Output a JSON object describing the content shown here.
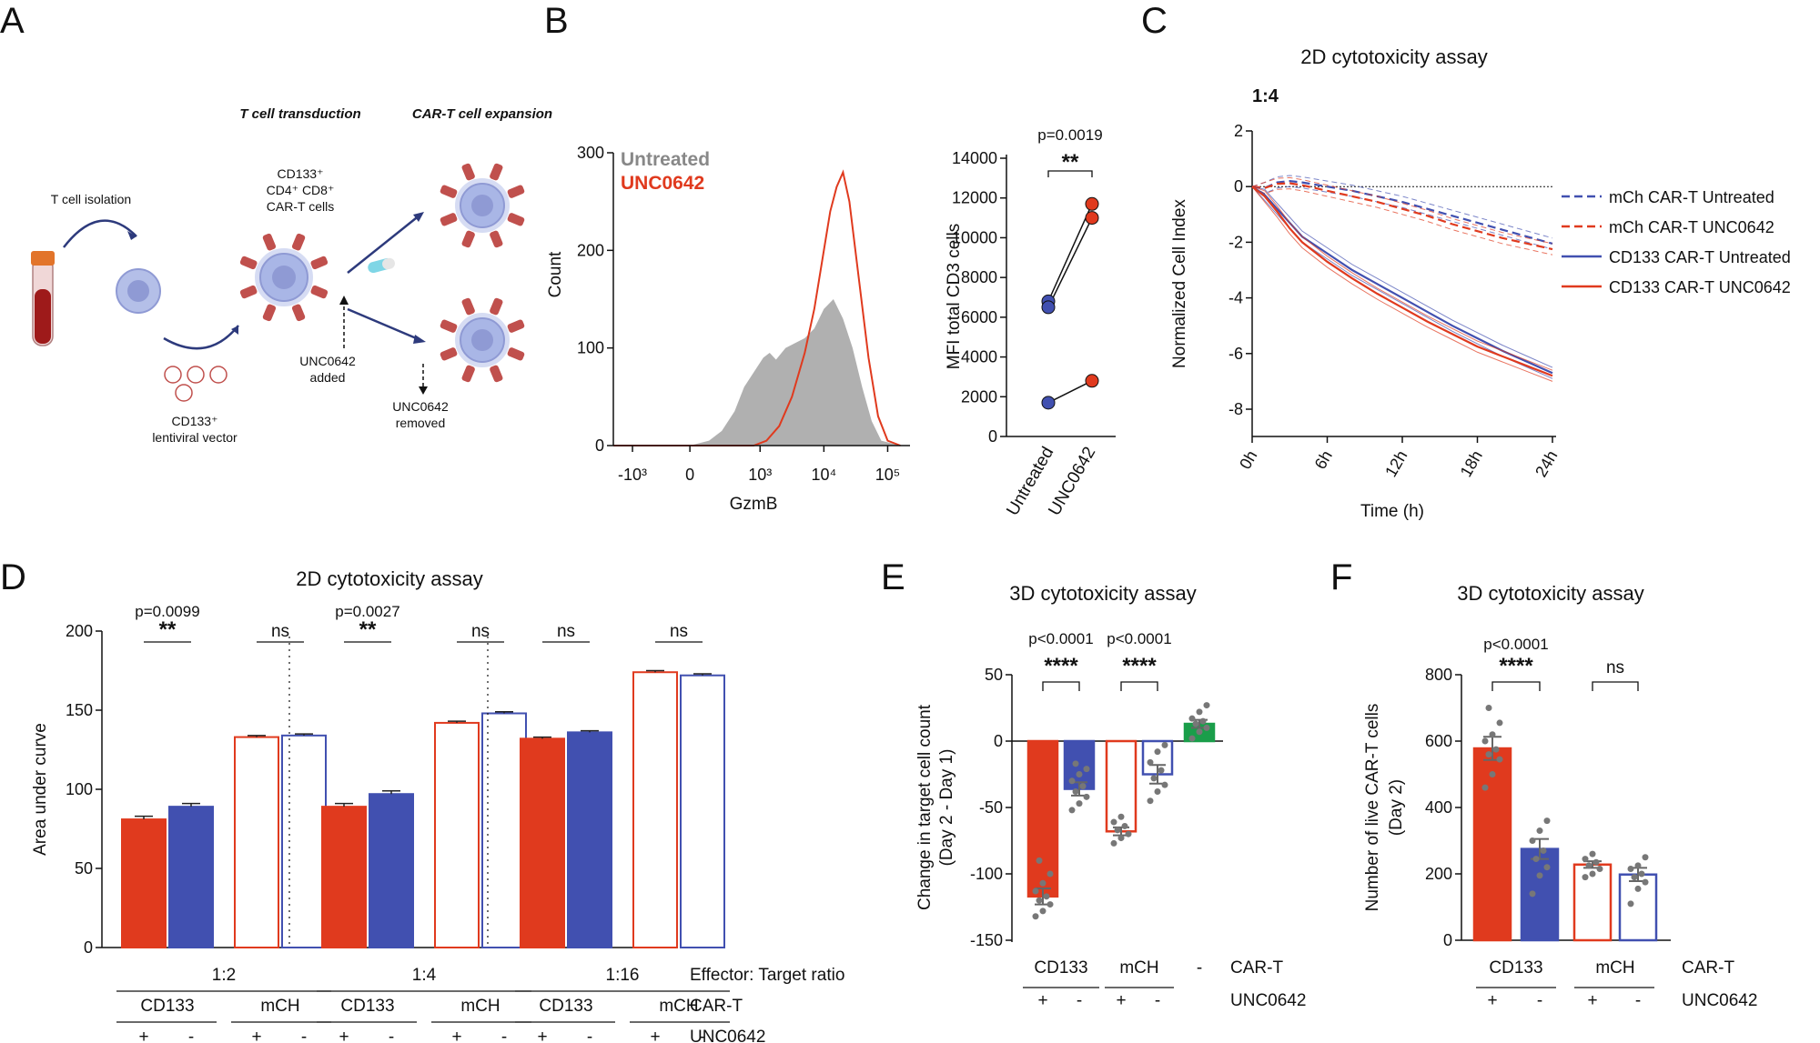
{
  "panels": {
    "A": "A",
    "B": "B",
    "C": "C",
    "D": "D",
    "E": "E",
    "F": "F"
  },
  "schematic": {
    "step_isolation": "T cell isolation",
    "step_transduction": "T cell transduction",
    "step_expansion": "CAR-T cell expansion",
    "cell_markers_line1": "CD133⁺",
    "cell_markers_line2": "CD4⁺ CD8⁺",
    "cell_markers_line3": "CAR-T cells",
    "vector_label_line1": "CD133⁺",
    "vector_label_line2": "lentiviral vector",
    "drug_added_line1": "UNC0642",
    "drug_added_line2": "added",
    "drug_removed_line1": "UNC0642",
    "drug_removed_line2": "removed",
    "colors": {
      "cell": "#a9b6e6",
      "receptor": "#c0504d",
      "arrow": "#2d3a7c",
      "blood": "#9e1a1a"
    }
  },
  "colors": {
    "red": "#e03a1e",
    "blue": "#4150b0",
    "green": "#1a9e4a",
    "gray_fill": "#b0b0b0",
    "point_gray": "#777777"
  },
  "chart_data": [
    {
      "id": "B-histogram",
      "type": "area",
      "xlabel": "GzmB",
      "ylabel": "Count",
      "ylim": [
        0,
        300
      ],
      "yticks": [
        "0",
        "100",
        "200",
        "300"
      ],
      "xticks": [
        "-10³",
        "0",
        "10³",
        "10⁴",
        "10⁵"
      ],
      "legend": [
        "Untreated",
        "UNC0642"
      ],
      "series": [
        {
          "name": "Untreated",
          "x": [
            0.6,
            1.8,
            2.1,
            2.3,
            2.5,
            2.65,
            2.8,
            2.95,
            3.05,
            3.15,
            3.3,
            3.45,
            3.6,
            3.75,
            3.9,
            4.05,
            4.2,
            4.35,
            4.5,
            4.65,
            4.8,
            5.1
          ],
          "values": [
            0,
            0,
            5,
            15,
            35,
            60,
            75,
            90,
            95,
            88,
            100,
            105,
            110,
            120,
            140,
            150,
            130,
            100,
            60,
            25,
            5,
            0
          ]
        },
        {
          "name": "UNC0642",
          "x": [
            0.6,
            2.8,
            3.0,
            3.2,
            3.4,
            3.6,
            3.75,
            3.9,
            4.0,
            4.1,
            4.2,
            4.3,
            4.45,
            4.6,
            4.75,
            4.9,
            5.1
          ],
          "values": [
            0,
            0,
            5,
            20,
            50,
            95,
            140,
            200,
            240,
            265,
            280,
            250,
            170,
            90,
            30,
            5,
            0
          ]
        }
      ]
    },
    {
      "id": "B-paired",
      "type": "scatter",
      "ylabel": "MFI total CD3 cells",
      "ylim": [
        0,
        14000
      ],
      "yticks": [
        "0",
        "2000",
        "4000",
        "6000",
        "8000",
        "10000",
        "12000",
        "14000"
      ],
      "categories": [
        "Untreated",
        "UNC0642"
      ],
      "pairs": [
        [
          6800,
          11700
        ],
        [
          6500,
          11000
        ],
        [
          1700,
          2800
        ]
      ],
      "pvalue": "p=0.0019",
      "sig": "**"
    },
    {
      "id": "C-line",
      "type": "line",
      "title": "2D cytotoxicity assay",
      "subtitle": "1:4",
      "xlabel": "Time (h)",
      "ylabel": "Normalized Cell Index",
      "ylim": [
        -8,
        2
      ],
      "yticks": [
        "2",
        "0",
        "-2",
        "-4",
        "-6",
        "-8"
      ],
      "xticks": [
        "0h",
        "6h",
        "12h",
        "18h",
        "24h"
      ],
      "x": [
        0,
        1,
        2,
        3,
        4,
        6,
        8,
        10,
        12,
        14,
        16,
        18,
        20,
        22,
        24
      ],
      "series": [
        {
          "name": "mCh CAR-T Untreated",
          "style": "dashed",
          "color": "blue",
          "values": [
            0,
            -0.05,
            0.15,
            0.2,
            0.15,
            0.0,
            -0.15,
            -0.35,
            -0.55,
            -0.8,
            -1.05,
            -1.3,
            -1.55,
            -1.8,
            -2.05
          ]
        },
        {
          "name": "mCh CAR-T UNC0642",
          "style": "dashed",
          "color": "red",
          "values": [
            0,
            -0.05,
            0.1,
            0.12,
            0.05,
            -0.15,
            -0.35,
            -0.55,
            -0.8,
            -1.05,
            -1.35,
            -1.6,
            -1.85,
            -2.05,
            -2.25
          ]
        },
        {
          "name": "CD133 CAR-T Untreated",
          "style": "solid",
          "color": "blue",
          "values": [
            0,
            -0.3,
            -0.8,
            -1.3,
            -1.8,
            -2.4,
            -3.0,
            -3.5,
            -4.0,
            -4.5,
            -5.0,
            -5.45,
            -5.9,
            -6.3,
            -6.7
          ]
        },
        {
          "name": "CD133 CAR-T UNC0642",
          "style": "solid",
          "color": "red",
          "values": [
            0,
            -0.35,
            -0.9,
            -1.5,
            -2.0,
            -2.7,
            -3.3,
            -3.85,
            -4.35,
            -4.85,
            -5.3,
            -5.75,
            -6.1,
            -6.45,
            -6.8
          ]
        }
      ]
    },
    {
      "id": "D-bars",
      "type": "bar",
      "title": "2D cytotoxicity assay",
      "ylabel": "Area under curve",
      "ylim": [
        0,
        200
      ],
      "yticks": [
        "0",
        "50",
        "100",
        "150",
        "200"
      ],
      "groups": [
        {
          "ratio": "1:2",
          "bars": [
            81,
            89,
            133,
            134
          ],
          "errors": [
            2,
            2,
            1,
            1
          ],
          "p_left": "p=0.0099",
          "sig_left": "**",
          "sig_right": "ns"
        },
        {
          "ratio": "1:4",
          "bars": [
            89,
            97,
            142,
            148
          ],
          "errors": [
            2,
            2,
            1,
            1
          ],
          "p_left": "p=0.0027",
          "sig_left": "**",
          "sig_right": "ns"
        },
        {
          "ratio": "1:16",
          "bars": [
            132,
            136,
            174,
            172
          ],
          "errors": [
            1,
            1,
            1,
            1
          ],
          "p_left": "",
          "sig_left": "ns",
          "sig_right": "ns"
        }
      ],
      "car_labels": [
        "CD133",
        "mCH"
      ],
      "unc_labels": [
        "+",
        "-",
        "+",
        "-"
      ],
      "row_labels": [
        "Effector: Target ratio",
        "CAR-T",
        "UNC0642"
      ]
    },
    {
      "id": "E-bars",
      "type": "bar",
      "title": "3D cytotoxicity assay",
      "ylabel_line1": "Change in target cell count",
      "ylabel_line2": "(Day 2 - Day 1)",
      "ylim": [
        -150,
        50
      ],
      "yticks": [
        "50",
        "0",
        "-50",
        "-100",
        "-150"
      ],
      "bars": [
        -117,
        -36,
        -68,
        -25,
        13
      ],
      "errors": [
        6,
        5,
        3,
        7,
        3
      ],
      "points": [
        [
          -132,
          -128,
          -123,
          -120,
          -117,
          -113,
          -107,
          -100,
          -90
        ],
        [
          -52,
          -47,
          -42,
          -38,
          -34,
          -30,
          -25,
          -21,
          -17
        ],
        [
          -77,
          -73,
          -70,
          -67,
          -64,
          -61,
          -57
        ],
        [
          -45,
          -38,
          -33,
          -28,
          -22,
          -16,
          -8,
          -3
        ],
        [
          2,
          7,
          10,
          13,
          15,
          17,
          22,
          27
        ]
      ],
      "sig": [
        {
          "p": "p<0.0001",
          "stars": "****"
        },
        {
          "p": "p<0.0001",
          "stars": "****"
        }
      ],
      "car_labels": [
        "CD133",
        "mCH",
        "-"
      ],
      "unc_labels": [
        "+",
        "-",
        "+",
        "-"
      ],
      "row_labels": [
        "CAR-T",
        "UNC0642"
      ]
    },
    {
      "id": "F-bars",
      "type": "bar",
      "title": "3D cytotoxicity assay",
      "ylabel_line1": "Number of live CAR-T cells",
      "ylabel_line2": "(Day 2)",
      "ylim": [
        0,
        800
      ],
      "yticks": [
        "0",
        "200",
        "400",
        "600",
        "800"
      ],
      "bars": [
        578,
        275,
        228,
        198
      ],
      "errors": [
        35,
        30,
        10,
        20
      ],
      "points": [
        [
          460,
          500,
          545,
          560,
          575,
          600,
          620,
          655,
          700
        ],
        [
          140,
          195,
          220,
          245,
          270,
          300,
          330,
          360
        ],
        [
          190,
          200,
          215,
          225,
          235,
          245,
          260
        ],
        [
          110,
          155,
          175,
          190,
          200,
          215,
          225,
          250
        ]
      ],
      "sig": [
        {
          "p": "p<0.0001",
          "stars": "****"
        },
        {
          "p": "",
          "stars": "ns"
        }
      ],
      "car_labels": [
        "CD133",
        "mCH"
      ],
      "unc_labels": [
        "+",
        "-",
        "+",
        "-"
      ],
      "row_labels": [
        "CAR-T",
        "UNC0642"
      ]
    }
  ]
}
